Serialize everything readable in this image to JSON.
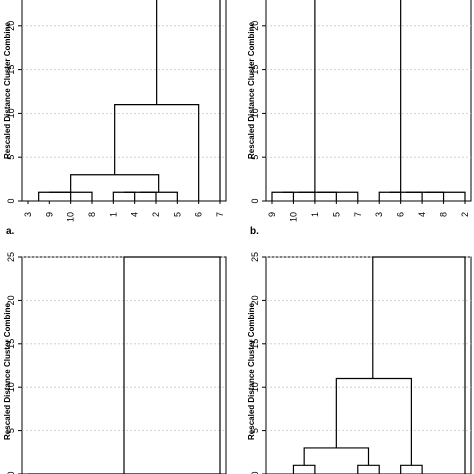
{
  "chart_data": [
    {
      "type": "dendrogram",
      "panel_label": "a.",
      "ylabel": "Rescaled Distance Cluster Combine",
      "yticks": [
        0,
        5,
        10,
        15,
        20
      ],
      "ylim": [
        0,
        25
      ],
      "leaves": [
        "3",
        "9",
        "10",
        "8",
        "1",
        "4",
        "2",
        "5",
        "6",
        "7"
      ],
      "merges": [
        {
          "x1": 0.5,
          "x2": 2,
          "h1": 0,
          "h2": 0,
          "d": 1
        },
        {
          "x1": 1,
          "x2": 3,
          "h1": 1,
          "h2": 0,
          "d": 1
        },
        {
          "x1": 4,
          "x2": 5,
          "h1": 0,
          "h2": 0,
          "d": 1
        },
        {
          "x1": 4.5,
          "x2": 6,
          "h1": 1,
          "h2": 0,
          "d": 1
        },
        {
          "x1": 5.25,
          "x2": 7,
          "h1": 1,
          "h2": 0,
          "d": 1
        },
        {
          "x1": 2,
          "x2": 6.125,
          "h1": 1,
          "h2": 1,
          "d": 3
        },
        {
          "x1": 4.0625,
          "x2": 8,
          "h1": 3,
          "h2": 0,
          "d": 11
        },
        {
          "x1": 6.03,
          "x2": 9,
          "h1": 11,
          "h2": 0,
          "d": 25
        }
      ]
    },
    {
      "type": "dendrogram",
      "panel_label": "b.",
      "ylabel": "Rescaled Distance Cluster Combine",
      "yticks": [
        0,
        5,
        10,
        15,
        20
      ],
      "ylim": [
        0,
        25
      ],
      "leaves": [
        "9",
        "10",
        "1",
        "5",
        "7",
        "3",
        "6",
        "4",
        "8",
        "2"
      ],
      "merges": [
        {
          "x1": 0,
          "x2": 1,
          "h1": 0,
          "h2": 0,
          "d": 1
        },
        {
          "x1": 0.5,
          "x2": 2,
          "h1": 1,
          "h2": 0,
          "d": 1
        },
        {
          "x1": 1.25,
          "x2": 3,
          "h1": 1,
          "h2": 0,
          "d": 1
        },
        {
          "x1": 2.125,
          "x2": 4,
          "h1": 1,
          "h2": 0,
          "d": 1
        },
        {
          "x1": 5,
          "x2": 6,
          "h1": 0,
          "h2": 0,
          "d": 1
        },
        {
          "x1": 5.5,
          "x2": 7,
          "h1": 1,
          "h2": 0,
          "d": 1
        },
        {
          "x1": 6.25,
          "x2": 8,
          "h1": 1,
          "h2": 0,
          "d": 1
        },
        {
          "x1": 7.125,
          "x2": 9,
          "h1": 1,
          "h2": 0,
          "d": 1
        },
        {
          "x1": 2,
          "x2": 6,
          "h1": 1,
          "h2": 1,
          "d": 25
        }
      ]
    },
    {
      "type": "dendrogram",
      "panel_label": "",
      "ylabel": "Rescaled Distance Cluster Combine",
      "yticks": [
        0,
        5,
        10,
        15,
        20,
        25
      ],
      "ylim": [
        0,
        25
      ],
      "leaves": [],
      "merges": [
        {
          "x1": 0,
          "x2": 1,
          "h1": 0,
          "h2": 0,
          "d": 0
        },
        {
          "x1": 1,
          "x2": 2,
          "h1": 0,
          "h2": 0,
          "d": 0
        },
        {
          "x1": 2,
          "x2": 3,
          "h1": 0,
          "h2": 0,
          "d": 0
        },
        {
          "x1": 3,
          "x2": 4,
          "h1": 0,
          "h2": 0,
          "d": 0
        },
        {
          "x1": 4,
          "x2": 5,
          "h1": 0,
          "h2": 0,
          "d": 0
        },
        {
          "x1": 5,
          "x2": 6,
          "h1": 0,
          "h2": 0,
          "d": 0
        },
        {
          "x1": 6,
          "x2": 7,
          "h1": 0,
          "h2": 0,
          "d": 0
        },
        {
          "x1": 7,
          "x2": 8,
          "h1": 0,
          "h2": 0,
          "d": 0
        },
        {
          "x1": 8,
          "x2": 9,
          "h1": 0,
          "h2": 0,
          "d": 0
        },
        {
          "x1": 4.5,
          "x2": 9,
          "h1": 0,
          "h2": 0,
          "d": 25
        }
      ]
    },
    {
      "type": "dendrogram",
      "panel_label": "",
      "ylabel": "Rescaled Distance Cluster Combine",
      "yticks": [
        0,
        5,
        10,
        15,
        20,
        25
      ],
      "ylim": [
        0,
        25
      ],
      "leaves": [],
      "merges": [
        {
          "x1": 1,
          "x2": 2,
          "h1": 0,
          "h2": 0,
          "d": 1
        },
        {
          "x1": 4,
          "x2": 5,
          "h1": 0,
          "h2": 0,
          "d": 1
        },
        {
          "x1": 6,
          "x2": 7,
          "h1": 0,
          "h2": 0,
          "d": 1
        },
        {
          "x1": 1.5,
          "x2": 4.5,
          "h1": 1,
          "h2": 1,
          "d": 3
        },
        {
          "x1": 3,
          "x2": 6.5,
          "h1": 3,
          "h2": 1,
          "d": 11
        },
        {
          "x1": 4.7,
          "x2": 9,
          "h1": 11,
          "h2": 0,
          "d": 25
        }
      ]
    }
  ]
}
